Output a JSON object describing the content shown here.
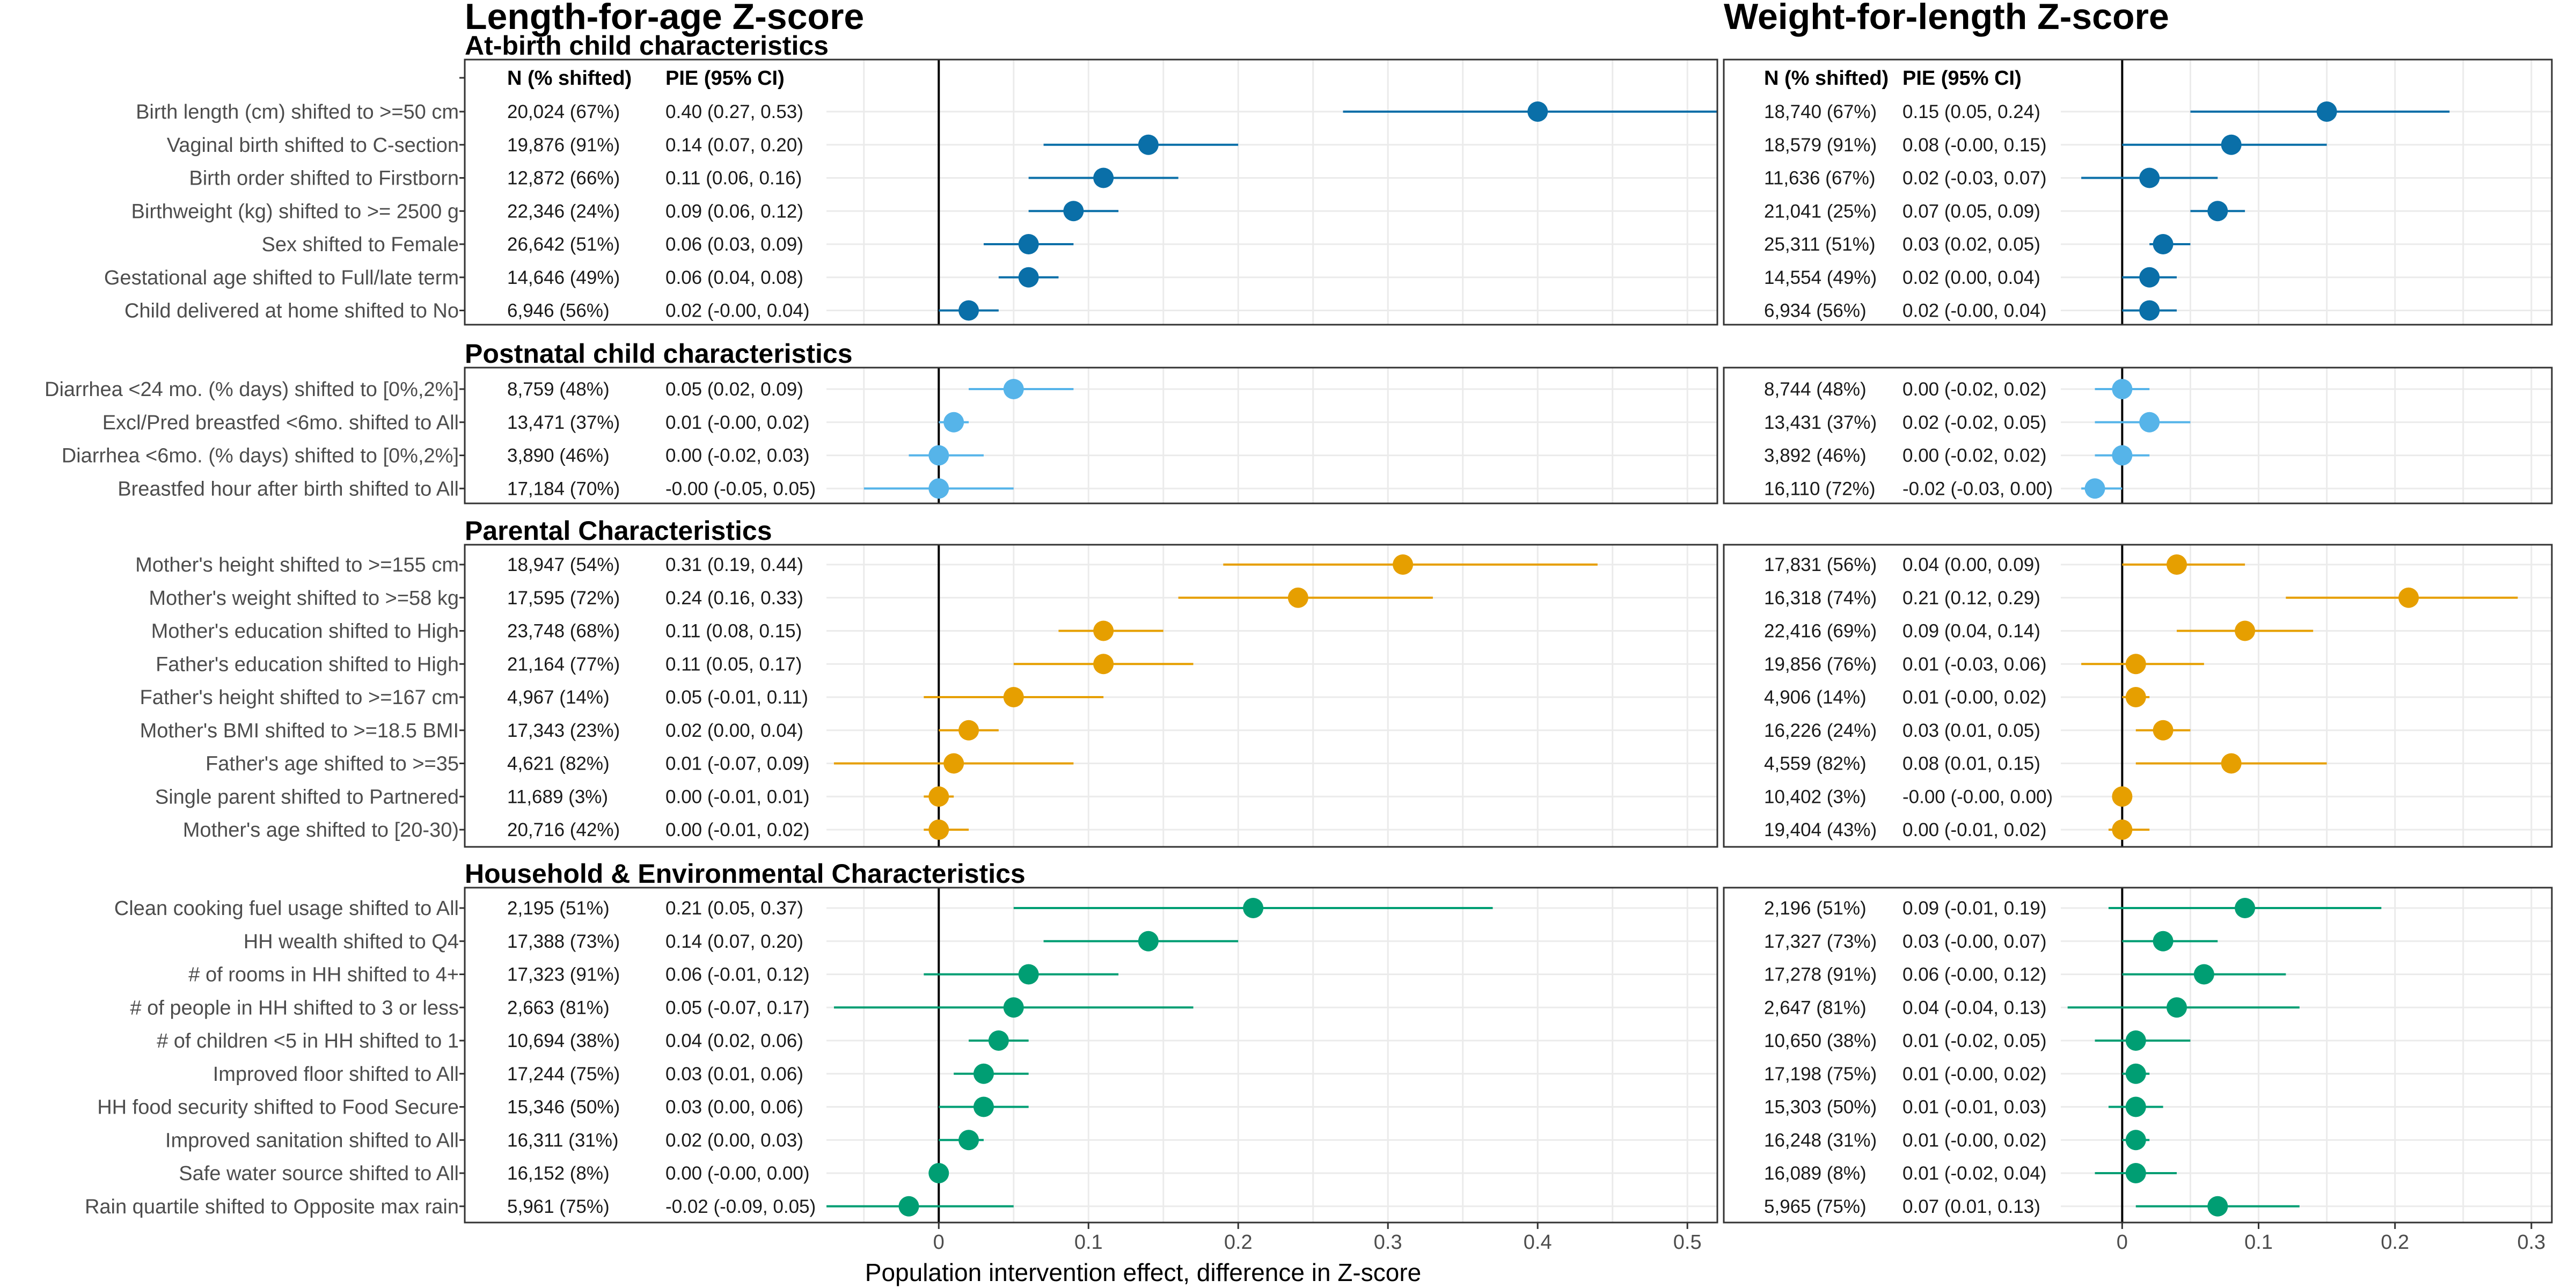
{
  "titles": {
    "left": "Length-for-age Z-score",
    "right": "Weight-for-length Z-score"
  },
  "column_headers": {
    "n_shifted": "N (% shifted)",
    "pie": "PIE (95% CI)"
  },
  "x_axis_label": "Population intervention effect, difference in Z-score",
  "colors": {
    "at_birth": "#0A6FA8",
    "postnatal": "#56B4E9",
    "parental": "#E69F00",
    "household": "#009E73",
    "panel_border": "#333333",
    "grid": "#EBEBEB",
    "zero_line": "#000000"
  },
  "chart_data": {
    "type": "forest",
    "grid": true,
    "panels": [
      {
        "name": "Length-for-age Z-score",
        "xlim": [
          -0.075,
          0.52
        ],
        "ticks": [
          0,
          0.1,
          0.2,
          0.3,
          0.4,
          0.5
        ],
        "tick_labels": [
          "0",
          "0.1",
          "0.2",
          "0.3",
          "0.4",
          "0.5"
        ]
      },
      {
        "name": "Weight-for-length Z-score",
        "xlim": [
          -0.045,
          0.315
        ],
        "ticks": [
          0,
          0.1,
          0.2,
          0.3
        ],
        "tick_labels": [
          "0",
          "0.1",
          "0.2",
          "0.3"
        ]
      }
    ],
    "sections": [
      {
        "title": "At-birth child characteristics",
        "color_key": "at_birth",
        "rows": [
          {
            "label": "Birth length (cm) shifted to >=50 cm",
            "laz": {
              "n": "20,024 (67%)",
              "pie": "0.40 (0.27, 0.53)",
              "est": 0.4,
              "lo": 0.27,
              "hi": 0.53
            },
            "wlz": {
              "n": "18,740 (67%)",
              "pie": "0.15 (0.05, 0.24)",
              "est": 0.15,
              "lo": 0.05,
              "hi": 0.24
            }
          },
          {
            "label": "Vaginal birth shifted to C-section",
            "laz": {
              "n": "19,876 (91%)",
              "pie": "0.14 (0.07, 0.20)",
              "est": 0.14,
              "lo": 0.07,
              "hi": 0.2
            },
            "wlz": {
              "n": "18,579 (91%)",
              "pie": "0.08 (-0.00, 0.15)",
              "est": 0.08,
              "lo": 0.0,
              "hi": 0.15
            }
          },
          {
            "label": "Birth order shifted to Firstborn",
            "laz": {
              "n": "12,872 (66%)",
              "pie": "0.11 (0.06, 0.16)",
              "est": 0.11,
              "lo": 0.06,
              "hi": 0.16
            },
            "wlz": {
              "n": "11,636 (67%)",
              "pie": "0.02 (-0.03, 0.07)",
              "est": 0.02,
              "lo": -0.03,
              "hi": 0.07
            }
          },
          {
            "label": "Birthweight (kg) shifted to >= 2500 g",
            "laz": {
              "n": "22,346 (24%)",
              "pie": "0.09 (0.06, 0.12)",
              "est": 0.09,
              "lo": 0.06,
              "hi": 0.12
            },
            "wlz": {
              "n": "21,041 (25%)",
              "pie": "0.07 (0.05, 0.09)",
              "est": 0.07,
              "lo": 0.05,
              "hi": 0.09
            }
          },
          {
            "label": "Sex shifted to Female",
            "laz": {
              "n": "26,642 (51%)",
              "pie": "0.06 (0.03, 0.09)",
              "est": 0.06,
              "lo": 0.03,
              "hi": 0.09
            },
            "wlz": {
              "n": "25,311 (51%)",
              "pie": "0.03 (0.02, 0.05)",
              "est": 0.03,
              "lo": 0.02,
              "hi": 0.05
            }
          },
          {
            "label": "Gestational age shifted to Full/late term",
            "laz": {
              "n": "14,646 (49%)",
              "pie": "0.06 (0.04, 0.08)",
              "est": 0.06,
              "lo": 0.04,
              "hi": 0.08
            },
            "wlz": {
              "n": "14,554 (49%)",
              "pie": "0.02 (0.00, 0.04)",
              "est": 0.02,
              "lo": 0.0,
              "hi": 0.04
            }
          },
          {
            "label": "Child delivered at home shifted to No",
            "laz": {
              "n": "6,946 (56%)",
              "pie": "0.02 (-0.00, 0.04)",
              "est": 0.02,
              "lo": 0.0,
              "hi": 0.04
            },
            "wlz": {
              "n": "6,934 (56%)",
              "pie": "0.02 (-0.00, 0.04)",
              "est": 0.02,
              "lo": 0.0,
              "hi": 0.04
            }
          }
        ]
      },
      {
        "title": "Postnatal child characteristics",
        "color_key": "postnatal",
        "rows": [
          {
            "label": "Diarrhea <24 mo.  (% days) shifted to [0%,2%]",
            "laz": {
              "n": "8,759 (48%)",
              "pie": "0.05 (0.02, 0.09)",
              "est": 0.05,
              "lo": 0.02,
              "hi": 0.09
            },
            "wlz": {
              "n": "8,744 (48%)",
              "pie": "0.00 (-0.02, 0.02)",
              "est": 0.0,
              "lo": -0.02,
              "hi": 0.02
            }
          },
          {
            "label": "Excl/Pred breastfed <6mo. shifted to All",
            "laz": {
              "n": "13,471 (37%)",
              "pie": "0.01 (-0.00, 0.02)",
              "est": 0.01,
              "lo": 0.0,
              "hi": 0.02
            },
            "wlz": {
              "n": "13,431 (37%)",
              "pie": "0.02 (-0.02, 0.05)",
              "est": 0.02,
              "lo": -0.02,
              "hi": 0.05
            }
          },
          {
            "label": "Diarrhea <6mo. (% days) shifted to [0%,2%]",
            "laz": {
              "n": "3,890 (46%)",
              "pie": "0.00 (-0.02, 0.03)",
              "est": 0.0,
              "lo": -0.02,
              "hi": 0.03
            },
            "wlz": {
              "n": "3,892 (46%)",
              "pie": "0.00 (-0.02, 0.02)",
              "est": 0.0,
              "lo": -0.02,
              "hi": 0.02
            }
          },
          {
            "label": "Breastfed hour after birth shifted to All",
            "laz": {
              "n": "17,184 (70%)",
              "pie": "-0.00 (-0.05, 0.05)",
              "est": 0.0,
              "lo": -0.05,
              "hi": 0.05
            },
            "wlz": {
              "n": "16,110 (72%)",
              "pie": "-0.02 (-0.03, 0.00)",
              "est": -0.02,
              "lo": -0.03,
              "hi": 0.0
            }
          }
        ]
      },
      {
        "title": "Parental Characteristics",
        "color_key": "parental",
        "rows": [
          {
            "label": "Mother's height shifted to >=155 cm",
            "laz": {
              "n": "18,947 (54%)",
              "pie": "0.31 (0.19, 0.44)",
              "est": 0.31,
              "lo": 0.19,
              "hi": 0.44
            },
            "wlz": {
              "n": "17,831 (56%)",
              "pie": "0.04 (0.00, 0.09)",
              "est": 0.04,
              "lo": 0.0,
              "hi": 0.09
            }
          },
          {
            "label": "Mother's weight shifted to >=58 kg",
            "laz": {
              "n": "17,595 (72%)",
              "pie": "0.24 (0.16, 0.33)",
              "est": 0.24,
              "lo": 0.16,
              "hi": 0.33
            },
            "wlz": {
              "n": "16,318 (74%)",
              "pie": "0.21 (0.12, 0.29)",
              "est": 0.21,
              "lo": 0.12,
              "hi": 0.29
            }
          },
          {
            "label": "Mother's education shifted to High",
            "laz": {
              "n": "23,748 (68%)",
              "pie": "0.11 (0.08, 0.15)",
              "est": 0.11,
              "lo": 0.08,
              "hi": 0.15
            },
            "wlz": {
              "n": "22,416 (69%)",
              "pie": "0.09 (0.04, 0.14)",
              "est": 0.09,
              "lo": 0.04,
              "hi": 0.14
            }
          },
          {
            "label": "Father's education shifted to High",
            "laz": {
              "n": "21,164 (77%)",
              "pie": "0.11 (0.05, 0.17)",
              "est": 0.11,
              "lo": 0.05,
              "hi": 0.17
            },
            "wlz": {
              "n": "19,856 (76%)",
              "pie": "0.01 (-0.03, 0.06)",
              "est": 0.01,
              "lo": -0.03,
              "hi": 0.06
            }
          },
          {
            "label": "Father's height shifted to >=167 cm",
            "laz": {
              "n": "4,967 (14%)",
              "pie": "0.05 (-0.01, 0.11)",
              "est": 0.05,
              "lo": -0.01,
              "hi": 0.11
            },
            "wlz": {
              "n": "4,906 (14%)",
              "pie": "0.01 (-0.00, 0.02)",
              "est": 0.01,
              "lo": 0.0,
              "hi": 0.02
            }
          },
          {
            "label": "Mother's BMI shifted to >=18.5 BMI",
            "laz": {
              "n": "17,343 (23%)",
              "pie": "0.02 (0.00, 0.04)",
              "est": 0.02,
              "lo": 0.0,
              "hi": 0.04
            },
            "wlz": {
              "n": "16,226 (24%)",
              "pie": "0.03 (0.01, 0.05)",
              "est": 0.03,
              "lo": 0.01,
              "hi": 0.05
            }
          },
          {
            "label": "Father's age shifted to >=35",
            "laz": {
              "n": "4,621 (82%)",
              "pie": "0.01 (-0.07, 0.09)",
              "est": 0.01,
              "lo": -0.07,
              "hi": 0.09
            },
            "wlz": {
              "n": "4,559 (82%)",
              "pie": "0.08 (0.01, 0.15)",
              "est": 0.08,
              "lo": 0.01,
              "hi": 0.15
            }
          },
          {
            "label": "Single parent shifted to Partnered",
            "laz": {
              "n": "11,689 (3%)",
              "pie": "0.00 (-0.01, 0.01)",
              "est": 0.0,
              "lo": -0.01,
              "hi": 0.01
            },
            "wlz": {
              "n": "10,402 (3%)",
              "pie": "-0.00 (-0.00, 0.00)",
              "est": 0.0,
              "lo": 0.0,
              "hi": 0.0
            }
          },
          {
            "label": "Mother's age shifted to [20-30)",
            "laz": {
              "n": "20,716 (42%)",
              "pie": "0.00 (-0.01, 0.02)",
              "est": 0.0,
              "lo": -0.01,
              "hi": 0.02
            },
            "wlz": {
              "n": "19,404 (43%)",
              "pie": "0.00 (-0.01, 0.02)",
              "est": 0.0,
              "lo": -0.01,
              "hi": 0.02
            }
          }
        ]
      },
      {
        "title": "Household & Environmental Characteristics",
        "color_key": "household",
        "rows": [
          {
            "label": "Clean cooking fuel usage shifted to All",
            "laz": {
              "n": "2,195 (51%)",
              "pie": "0.21 (0.05, 0.37)",
              "est": 0.21,
              "lo": 0.05,
              "hi": 0.37
            },
            "wlz": {
              "n": "2,196 (51%)",
              "pie": "0.09 (-0.01, 0.19)",
              "est": 0.09,
              "lo": -0.01,
              "hi": 0.19
            }
          },
          {
            "label": "HH wealth shifted to Q4",
            "laz": {
              "n": "17,388 (73%)",
              "pie": "0.14 (0.07, 0.20)",
              "est": 0.14,
              "lo": 0.07,
              "hi": 0.2
            },
            "wlz": {
              "n": "17,327 (73%)",
              "pie": "0.03 (-0.00, 0.07)",
              "est": 0.03,
              "lo": 0.0,
              "hi": 0.07
            }
          },
          {
            "label": "# of rooms in HH shifted to 4+",
            "laz": {
              "n": "17,323 (91%)",
              "pie": "0.06 (-0.01, 0.12)",
              "est": 0.06,
              "lo": -0.01,
              "hi": 0.12
            },
            "wlz": {
              "n": "17,278 (91%)",
              "pie": "0.06 (-0.00, 0.12)",
              "est": 0.06,
              "lo": 0.0,
              "hi": 0.12
            }
          },
          {
            "label": "# of people in HH shifted to 3 or less",
            "laz": {
              "n": "2,663 (81%)",
              "pie": "0.05 (-0.07, 0.17)",
              "est": 0.05,
              "lo": -0.07,
              "hi": 0.17
            },
            "wlz": {
              "n": "2,647 (81%)",
              "pie": "0.04 (-0.04, 0.13)",
              "est": 0.04,
              "lo": -0.04,
              "hi": 0.13
            }
          },
          {
            "label": "# of children <5 in HH shifted to 1",
            "laz": {
              "n": "10,694 (38%)",
              "pie": "0.04 (0.02, 0.06)",
              "est": 0.04,
              "lo": 0.02,
              "hi": 0.06
            },
            "wlz": {
              "n": "10,650 (38%)",
              "pie": "0.01 (-0.02, 0.05)",
              "est": 0.01,
              "lo": -0.02,
              "hi": 0.05
            }
          },
          {
            "label": "Improved floor shifted to All",
            "laz": {
              "n": "17,244 (75%)",
              "pie": "0.03 (0.01, 0.06)",
              "est": 0.03,
              "lo": 0.01,
              "hi": 0.06
            },
            "wlz": {
              "n": "17,198 (75%)",
              "pie": "0.01 (-0.00, 0.02)",
              "est": 0.01,
              "lo": 0.0,
              "hi": 0.02
            }
          },
          {
            "label": "HH food security shifted to Food Secure",
            "laz": {
              "n": "15,346 (50%)",
              "pie": "0.03 (0.00, 0.06)",
              "est": 0.03,
              "lo": 0.0,
              "hi": 0.06
            },
            "wlz": {
              "n": "15,303 (50%)",
              "pie": "0.01 (-0.01, 0.03)",
              "est": 0.01,
              "lo": -0.01,
              "hi": 0.03
            }
          },
          {
            "label": "Improved sanitation shifted to All",
            "laz": {
              "n": "16,311 (31%)",
              "pie": "0.02 (0.00, 0.03)",
              "est": 0.02,
              "lo": 0.0,
              "hi": 0.03
            },
            "wlz": {
              "n": "16,248 (31%)",
              "pie": "0.01 (-0.00, 0.02)",
              "est": 0.01,
              "lo": 0.0,
              "hi": 0.02
            }
          },
          {
            "label": "Safe water source shifted to All",
            "laz": {
              "n": "16,152 (8%)",
              "pie": "0.00 (-0.00, 0.00)",
              "est": 0.0,
              "lo": 0.0,
              "hi": 0.0
            },
            "wlz": {
              "n": "16,089 (8%)",
              "pie": "0.01 (-0.02, 0.04)",
              "est": 0.01,
              "lo": -0.02,
              "hi": 0.04
            }
          },
          {
            "label": "Rain quartile shifted to Opposite max rain",
            "laz": {
              "n": "5,961 (75%)",
              "pie": "-0.02 (-0.09, 0.05)",
              "est": -0.02,
              "lo": -0.09,
              "hi": 0.05
            },
            "wlz": {
              "n": "5,965 (75%)",
              "pie": "0.07 (0.01, 0.13)",
              "est": 0.07,
              "lo": 0.01,
              "hi": 0.13
            }
          }
        ]
      }
    ]
  }
}
